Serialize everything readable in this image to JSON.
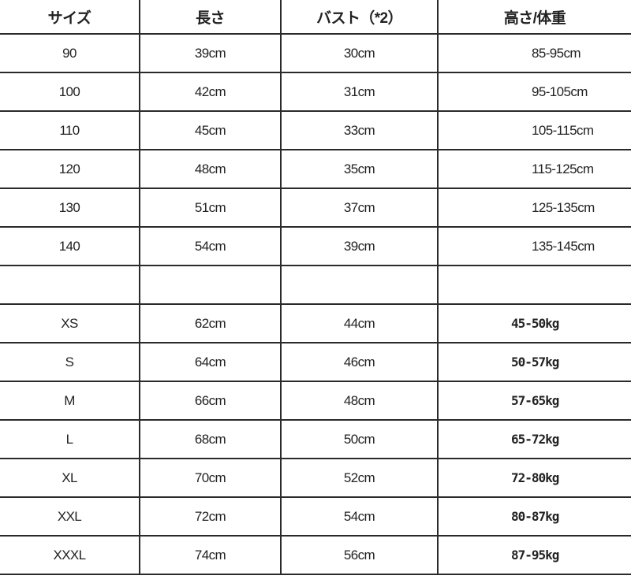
{
  "headers": [
    "サイズ",
    "長さ",
    "バスト（*2）",
    "高さ/体重"
  ],
  "kids_rows": [
    [
      "90",
      "39cm",
      "30cm",
      "85-95cm"
    ],
    [
      "100",
      "42cm",
      "31cm",
      "95-105cm"
    ],
    [
      "110",
      "45cm",
      "33cm",
      "105-115cm"
    ],
    [
      "120",
      "48cm",
      "35cm",
      "115-125cm"
    ],
    [
      "130",
      "51cm",
      "37cm",
      "125-135cm"
    ],
    [
      "140",
      "54cm",
      "39cm",
      "135-145cm"
    ]
  ],
  "adult_rows": [
    [
      "XS",
      "62cm",
      "44cm",
      "45-50kg"
    ],
    [
      "S",
      "64cm",
      "46cm",
      "50-57kg"
    ],
    [
      "M",
      "66cm",
      "48cm",
      "57-65kg"
    ],
    [
      "L",
      "68cm",
      "50cm",
      "65-72kg"
    ],
    [
      "XL",
      "70cm",
      "52cm",
      "72-80kg"
    ],
    [
      "XXL",
      "72cm",
      "54cm",
      "80-87kg"
    ],
    [
      "XXXL",
      "74cm",
      "56cm",
      "87-95kg"
    ]
  ]
}
